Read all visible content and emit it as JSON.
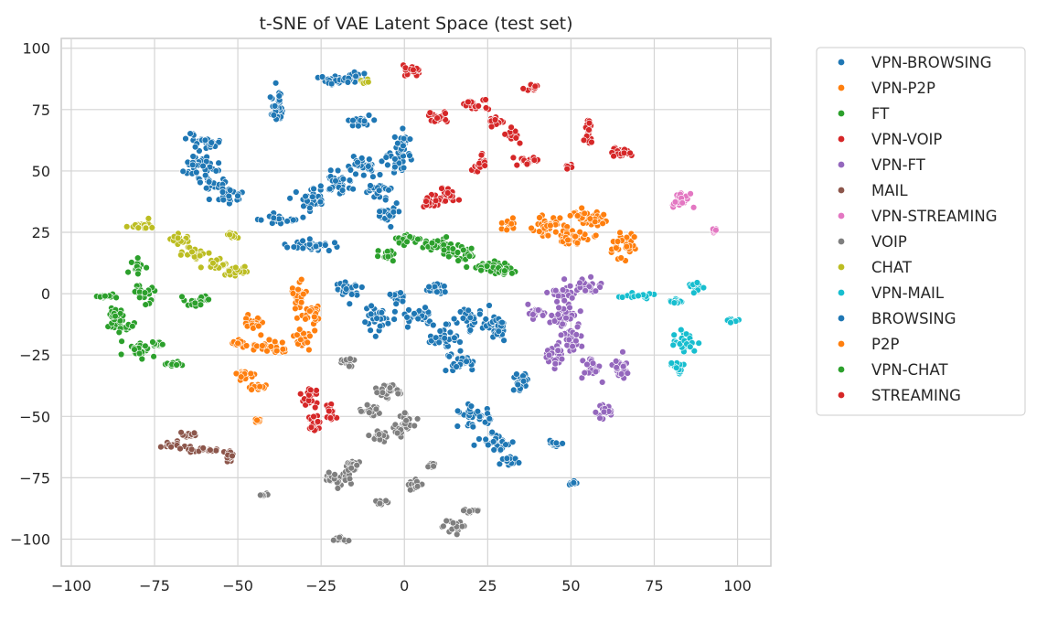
{
  "chart_data": {
    "type": "scatter",
    "title": "t-SNE of VAE Latent Space (test set)",
    "xlabel": "",
    "ylabel": "",
    "xlim": [
      -103,
      110
    ],
    "ylim": [
      -111,
      104
    ],
    "xticks": [
      -100,
      -75,
      -50,
      -25,
      0,
      25,
      50,
      75,
      100
    ],
    "xtick_labels": [
      "−100",
      "−75",
      "−50",
      "−25",
      "0",
      "25",
      "50",
      "75",
      "100"
    ],
    "yticks": [
      100,
      75,
      50,
      25,
      0,
      -25,
      -50,
      -75,
      -100
    ],
    "ytick_labels": [
      "100",
      "75",
      "50",
      "25",
      "0",
      "−25",
      "−50",
      "−75",
      "−100"
    ],
    "grid": true,
    "legend_position": "outside-right",
    "series": [
      {
        "name": "VPN-BROWSING",
        "color": "#1f77b4",
        "clusters": [
          [
            -20,
            87,
            4,
            2
          ],
          [
            -15,
            88,
            3,
            2
          ],
          [
            -38,
            76,
            2,
            6
          ],
          [
            -60,
            62,
            4,
            3
          ],
          [
            -62,
            52,
            5,
            3
          ],
          [
            -58,
            45,
            3,
            4
          ],
          [
            -53,
            40,
            3,
            3
          ],
          [
            -37,
            30,
            4,
            2
          ],
          [
            -28,
            38,
            4,
            4
          ],
          [
            -20,
            45,
            4,
            4
          ],
          [
            -12,
            52,
            4,
            4
          ],
          [
            -28,
            20,
            6,
            2
          ],
          [
            -8,
            42,
            3,
            3
          ],
          [
            -5,
            32,
            3,
            3
          ],
          [
            -2,
            55,
            3,
            4
          ],
          [
            0,
            62,
            2,
            3
          ],
          [
            -13,
            70,
            3,
            2
          ]
        ]
      },
      {
        "name": "VPN-P2P",
        "color": "#ff7f0e",
        "clusters": [
          [
            31,
            28,
            2,
            2
          ],
          [
            43,
            28,
            5,
            3
          ],
          [
            50,
            22,
            5,
            3
          ],
          [
            57,
            30,
            3,
            3
          ],
          [
            66,
            20,
            3,
            5
          ],
          [
            53,
            32,
            3,
            2
          ]
        ]
      },
      {
        "name": "FT",
        "color": "#2ca02c",
        "clusters": [
          [
            0,
            22,
            3,
            2
          ],
          [
            10,
            20,
            5,
            2
          ],
          [
            18,
            16,
            4,
            3
          ],
          [
            25,
            11,
            4,
            2
          ],
          [
            30,
            10,
            3,
            2
          ],
          [
            -5,
            16,
            2,
            2
          ]
        ]
      },
      {
        "name": "VPN-VOIP",
        "color": "#d62728",
        "clusters": [
          [
            2,
            91,
            3,
            2
          ],
          [
            10,
            72,
            3,
            2
          ],
          [
            22,
            77,
            3,
            2
          ],
          [
            12,
            40,
            3,
            3
          ],
          [
            7,
            37,
            2,
            2
          ],
          [
            23,
            53,
            2,
            3
          ],
          [
            37,
            54,
            3,
            2
          ],
          [
            38,
            84,
            2,
            1
          ],
          [
            55,
            66,
            1,
            4
          ],
          [
            65,
            58,
            3,
            2
          ],
          [
            27,
            70,
            2,
            2
          ],
          [
            49,
            52,
            1,
            1
          ],
          [
            32,
            65,
            2,
            2
          ]
        ]
      },
      {
        "name": "VPN-FT",
        "color": "#9467bd",
        "clusters": [
          [
            48,
            0,
            3,
            3
          ],
          [
            55,
            3,
            3,
            3
          ],
          [
            48,
            -8,
            4,
            4
          ],
          [
            50,
            -18,
            3,
            5
          ],
          [
            45,
            -25,
            3,
            4
          ],
          [
            56,
            -30,
            2,
            4
          ],
          [
            65,
            -30,
            2,
            4
          ],
          [
            60,
            -48,
            2,
            3
          ],
          [
            40,
            -8,
            2,
            2
          ]
        ]
      },
      {
        "name": "MAIL",
        "color": "#8c564b",
        "clusters": [
          [
            -65,
            -58,
            3,
            1
          ],
          [
            -70,
            -62,
            3,
            1
          ],
          [
            -60,
            -64,
            4,
            1
          ],
          [
            -52,
            -66,
            2,
            2
          ]
        ]
      },
      {
        "name": "VPN-STREAMING",
        "color": "#e377c2",
        "clusters": [
          [
            83,
            38,
            3,
            3
          ],
          [
            93,
            26,
            1,
            1
          ]
        ]
      },
      {
        "name": "VOIP",
        "color": "#7f7f7f",
        "clusters": [
          [
            -17,
            -28,
            2,
            2
          ],
          [
            -5,
            -40,
            3,
            3
          ],
          [
            0,
            -53,
            3,
            4
          ],
          [
            -8,
            -58,
            3,
            2
          ],
          [
            -20,
            -75,
            4,
            3
          ],
          [
            -15,
            -70,
            2,
            2
          ],
          [
            -18,
            -100,
            2,
            1
          ],
          [
            15,
            -95,
            3,
            2
          ],
          [
            3,
            -78,
            2,
            2
          ],
          [
            -7,
            -85,
            2,
            1
          ],
          [
            -42,
            -82,
            1,
            1
          ],
          [
            -10,
            -48,
            2,
            2
          ],
          [
            8,
            -70,
            2,
            1
          ],
          [
            20,
            -89,
            2,
            1
          ]
        ]
      },
      {
        "name": "CHAT",
        "color": "#bcbd22",
        "clusters": [
          [
            -78,
            28,
            3,
            2
          ],
          [
            -68,
            22,
            3,
            2
          ],
          [
            -62,
            16,
            3,
            2
          ],
          [
            -57,
            12,
            3,
            2
          ],
          [
            -52,
            24,
            2,
            1
          ],
          [
            -50,
            9,
            3,
            2
          ],
          [
            -12,
            86,
            1,
            1
          ]
        ]
      },
      {
        "name": "VPN-MAIL",
        "color": "#17becf",
        "clusters": [
          [
            70,
            -1,
            3,
            1
          ],
          [
            82,
            -3,
            2,
            1
          ],
          [
            87,
            3,
            2,
            2
          ],
          [
            84,
            -20,
            3,
            4
          ],
          [
            82,
            -30,
            2,
            2
          ],
          [
            98,
            -11,
            2,
            1
          ]
        ]
      },
      {
        "name": "BROWSING",
        "color": "#1f77b4",
        "clusters": [
          [
            -17,
            2,
            3,
            3
          ],
          [
            -8,
            -10,
            4,
            4
          ],
          [
            5,
            -10,
            4,
            3
          ],
          [
            12,
            -18,
            4,
            4
          ],
          [
            20,
            -10,
            4,
            4
          ],
          [
            28,
            -15,
            2,
            5
          ],
          [
            17,
            -28,
            4,
            3
          ],
          [
            35,
            -35,
            2,
            4
          ],
          [
            22,
            -50,
            4,
            4
          ],
          [
            28,
            -60,
            4,
            3
          ],
          [
            32,
            -68,
            2,
            2
          ],
          [
            45,
            -61,
            2,
            1
          ],
          [
            50,
            -77,
            1,
            1
          ],
          [
            -2,
            -2,
            2,
            2
          ],
          [
            10,
            2,
            3,
            2
          ]
        ]
      },
      {
        "name": "P2P",
        "color": "#ff7f0e",
        "clusters": [
          [
            -45,
            -12,
            3,
            3
          ],
          [
            -40,
            -22,
            6,
            2
          ],
          [
            -30,
            -18,
            2,
            3
          ],
          [
            -32,
            0,
            2,
            5
          ],
          [
            -28,
            -8,
            3,
            3
          ],
          [
            -48,
            -33,
            3,
            2
          ],
          [
            -44,
            -38,
            2,
            1
          ],
          [
            -44,
            -51,
            1,
            1
          ],
          [
            -50,
            -20,
            2,
            1
          ]
        ]
      },
      {
        "name": "VPN-CHAT",
        "color": "#2ca02c",
        "clusters": [
          [
            -90,
            -1,
            3,
            1
          ],
          [
            -85,
            -13,
            3,
            3
          ],
          [
            -80,
            -23,
            4,
            2
          ],
          [
            -78,
            0,
            3,
            3
          ],
          [
            -80,
            11,
            2,
            2
          ],
          [
            -62,
            -3,
            3,
            2
          ],
          [
            -69,
            -29,
            2,
            1
          ],
          [
            -87,
            -8,
            2,
            2
          ],
          [
            -74,
            -21,
            2,
            1
          ]
        ]
      },
      {
        "name": "STREAMING",
        "color": "#d62728",
        "clusters": [
          [
            -29,
            -42,
            2,
            3
          ],
          [
            -27,
            -52,
            2,
            3
          ],
          [
            -22,
            -48,
            1,
            4
          ]
        ]
      }
    ]
  }
}
